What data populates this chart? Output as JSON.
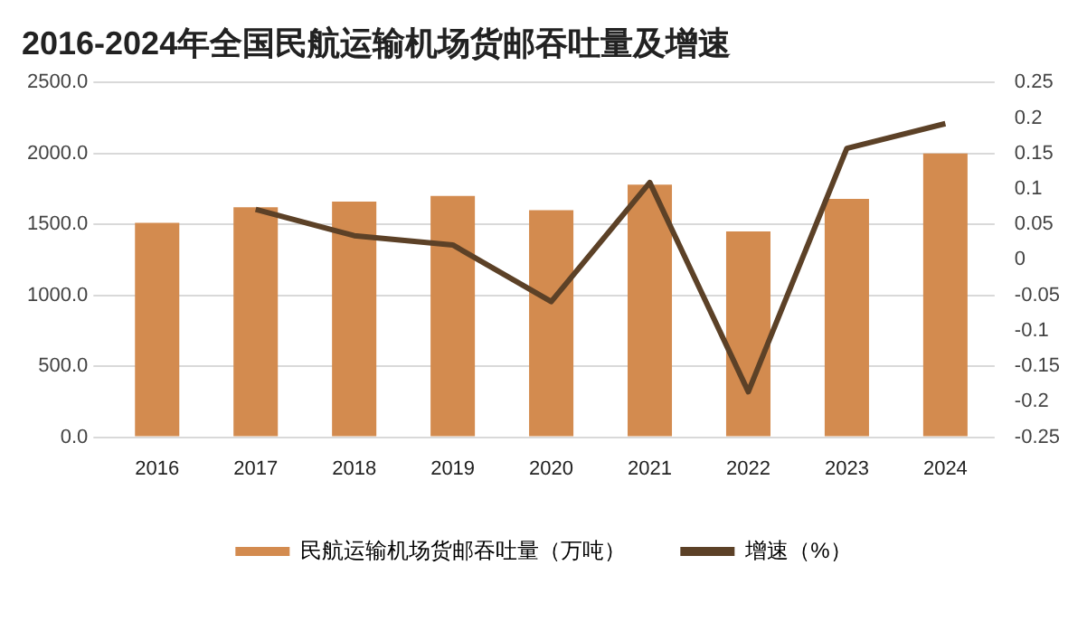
{
  "chart_data": {
    "type": "bar",
    "title": "2016-2024年全国民航运输机场货邮吞吐量及增速",
    "categories": [
      "2016",
      "2017",
      "2018",
      "2019",
      "2020",
      "2021",
      "2022",
      "2023",
      "2024"
    ],
    "series": [
      {
        "name": "民航运输机场货邮吞吐量（万吨）",
        "color": "#d38b4f",
        "values": [
          1510,
          1620,
          1660,
          1700,
          1600,
          1780,
          1450,
          1680,
          2000
        ]
      },
      {
        "name": "增速（%）",
        "type": "line",
        "axis": "y2",
        "color": "#5c4127",
        "values": [
          null,
          0.071,
          0.034,
          0.021,
          -0.059,
          0.109,
          -0.186,
          0.157,
          0.192
        ]
      }
    ],
    "ylim": [
      0,
      2500
    ],
    "yticks": [
      {
        "value": 0,
        "label": "0.0"
      },
      {
        "value": 500,
        "label": "500.0"
      },
      {
        "value": 1000,
        "label": "1000.0"
      },
      {
        "value": 1500,
        "label": "1500.0"
      },
      {
        "value": 2000,
        "label": "2000.0"
      },
      {
        "value": 2500,
        "label": "2500.0"
      }
    ],
    "y2lim": [
      -0.25,
      0.25
    ],
    "y2ticks": [
      -0.25,
      -0.2,
      -0.15,
      -0.1,
      -0.05,
      0,
      0.05,
      0.1,
      0.15,
      0.2,
      0.25
    ],
    "grid": "y",
    "legend": "bottom",
    "marker": "none",
    "line_style": "solid"
  }
}
